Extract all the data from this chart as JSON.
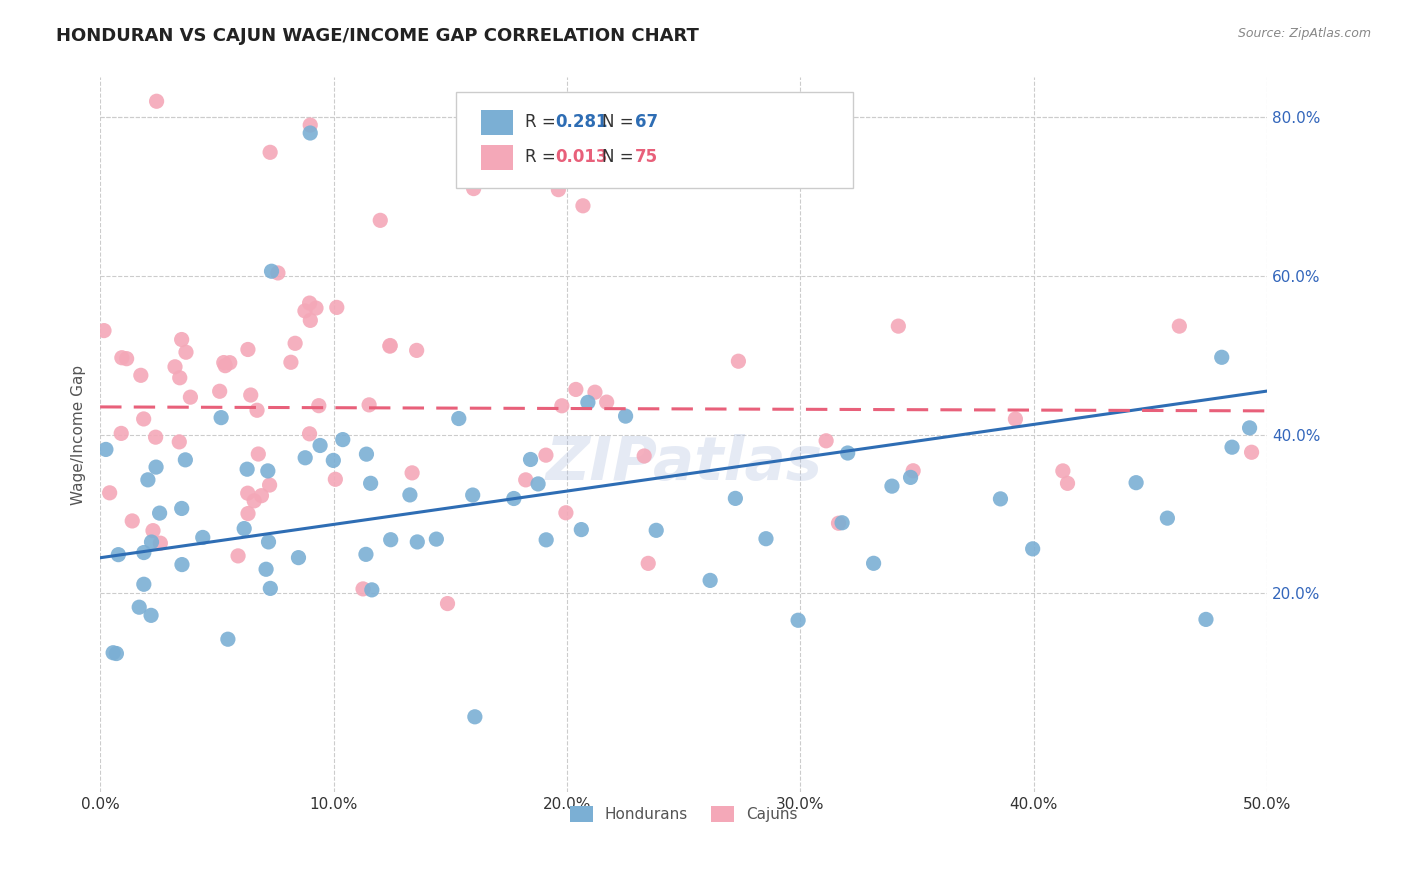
{
  "title": "HONDURAN VS CAJUN WAGE/INCOME GAP CORRELATION CHART",
  "source": "Source: ZipAtlas.com",
  "ylabel": "Wage/Income Gap",
  "y_ticks": [
    0.2,
    0.4,
    0.6,
    0.8
  ],
  "y_tick_labels": [
    "20.0%",
    "40.0%",
    "60.0%",
    "80.0%"
  ],
  "x_ticks": [
    0.0,
    0.1,
    0.2,
    0.3,
    0.4,
    0.5
  ],
  "x_tick_labels": [
    "0.0%",
    "10.0%",
    "20.0%",
    "30.0%",
    "40.0%",
    "50.0%"
  ],
  "x_lim": [
    0.0,
    0.5
  ],
  "y_lim": [
    -0.05,
    0.85
  ],
  "blue_color": "#7BAFD4",
  "pink_color": "#F4A8B8",
  "blue_line_color": "#2E6DB4",
  "pink_line_color": "#E8607A",
  "blue_R": 0.281,
  "blue_N": 67,
  "pink_R": 0.013,
  "pink_N": 75,
  "blue_trend_x": [
    0.0,
    0.5
  ],
  "blue_trend_y": [
    0.245,
    0.455
  ],
  "pink_trend_x": [
    0.0,
    0.5
  ],
  "pink_trend_y": [
    0.435,
    0.43
  ],
  "watermark": "ZIPatlas",
  "background_color": "#FFFFFF",
  "grid_color": "#CCCCCC",
  "legend_labels": [
    "Hondurans",
    "Cajuns"
  ],
  "blue_R_str": "0.281",
  "blue_N_str": "67",
  "pink_R_str": "0.013",
  "pink_N_str": "75",
  "blue_text_color": "#2E6DB4",
  "pink_text_color": "#E8607A",
  "label_color": "#3366BB"
}
